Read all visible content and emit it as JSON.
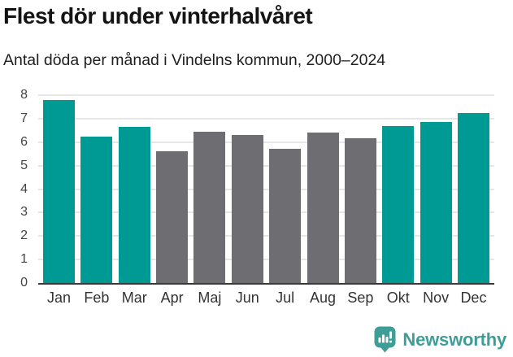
{
  "header": {
    "title": "Flest dör under vinterhalvåret",
    "subtitle": "Antal döda per månad i Vindelns kommun, 2000–2024"
  },
  "chart_data": {
    "type": "bar",
    "title": "Flest dör under vinterhalvåret",
    "subtitle": "Antal döda per månad i Vindelns kommun, 2000–2024",
    "categories": [
      "Jan",
      "Feb",
      "Mar",
      "Apr",
      "Maj",
      "Jun",
      "Jul",
      "Aug",
      "Sep",
      "Okt",
      "Nov",
      "Dec"
    ],
    "values": [
      7.8,
      6.25,
      6.65,
      5.6,
      6.45,
      6.3,
      5.7,
      6.4,
      6.15,
      6.7,
      6.85,
      7.25
    ],
    "bar_colors": [
      "#009a94",
      "#009a94",
      "#009a94",
      "#6d6d72",
      "#6d6d72",
      "#6d6d72",
      "#6d6d72",
      "#6d6d72",
      "#6d6d72",
      "#009a94",
      "#009a94",
      "#009a94"
    ],
    "highlighted_categories": [
      "Jan",
      "Feb",
      "Mar",
      "Okt",
      "Nov",
      "Dec"
    ],
    "xlabel": "",
    "ylabel": "",
    "ylim": [
      0,
      8
    ],
    "yticks": [
      0,
      1,
      2,
      3,
      4,
      5,
      6,
      7,
      8
    ],
    "grid": true,
    "legend": false
  },
  "colors": {
    "highlight": "#009a94",
    "base": "#6d6d72",
    "gridline": "#e7e7e7",
    "axis_line": "#3b3b3b",
    "logo_teal": "#3f9d98"
  },
  "footer": {
    "brand": "Newsworthy",
    "logo_icon": "bar-chart-speech-bubble-icon"
  }
}
